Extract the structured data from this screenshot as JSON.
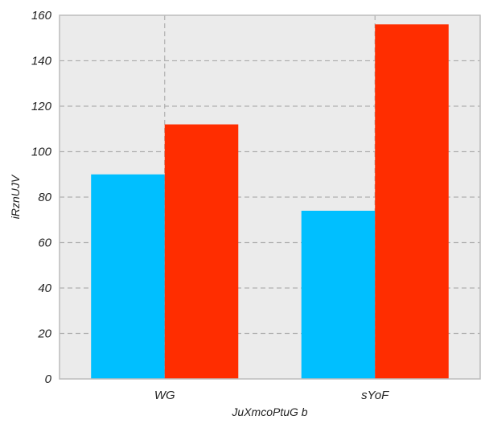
{
  "chart_data": {
    "type": "bar",
    "categories": [
      "WG",
      "sYoF"
    ],
    "series": [
      {
        "values": [
          90,
          74
        ],
        "color": "#00bfff"
      },
      {
        "values": [
          112,
          156
        ],
        "color": "#ff2d00"
      }
    ],
    "xlabel": "JuXmcoPtuG b",
    "ylabel": "iRznUJV",
    "ylim": [
      0,
      160
    ],
    "yticks": [
      0,
      20,
      40,
      60,
      80,
      100,
      120,
      140,
      160
    ],
    "grid": true,
    "legend": "none",
    "colors": {
      "plot_background": "#ebebeb",
      "grid": "#b0b0b0",
      "frame": "#bcbcbc"
    }
  }
}
